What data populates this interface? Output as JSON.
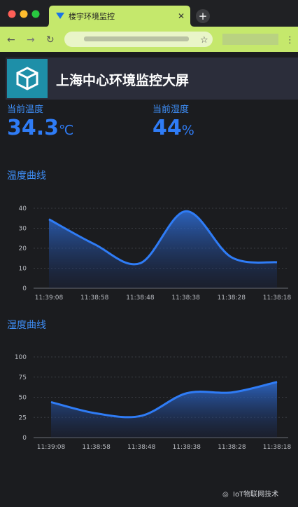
{
  "browser": {
    "tab_title": "楼宇环境监控"
  },
  "header": {
    "title": "上海中心环境监控大屏"
  },
  "temperature": {
    "label": "当前温度",
    "value": 34.3,
    "unit": "℃"
  },
  "humidity": {
    "label": "当前湿度",
    "value": 44,
    "unit": "%"
  },
  "chart_data": [
    {
      "type": "line",
      "title": "温度曲线",
      "categories": [
        "11:39:08",
        "11:38:58",
        "11:38:48",
        "11:38:38",
        "11:38:28",
        "11:38:18"
      ],
      "values": [
        34.5,
        22,
        12.5,
        38.5,
        15.5,
        13
      ],
      "color": "#2f7cf6",
      "ylim": [
        0,
        40
      ],
      "yticks": [
        0,
        10,
        20,
        30,
        40
      ],
      "grid": true
    },
    {
      "type": "line",
      "title": "湿度曲线",
      "categories": [
        "11:39:08",
        "11:38:58",
        "11:38:48",
        "11:38:38",
        "11:38:28",
        "11:38:18"
      ],
      "values": [
        44,
        30,
        27,
        55,
        56,
        69
      ],
      "color": "#2f7cf6",
      "ylim": [
        0,
        100
      ],
      "yticks": [
        0,
        25,
        50,
        75,
        100
      ],
      "grid": true
    }
  ],
  "watermark": "IoT物联网技术"
}
